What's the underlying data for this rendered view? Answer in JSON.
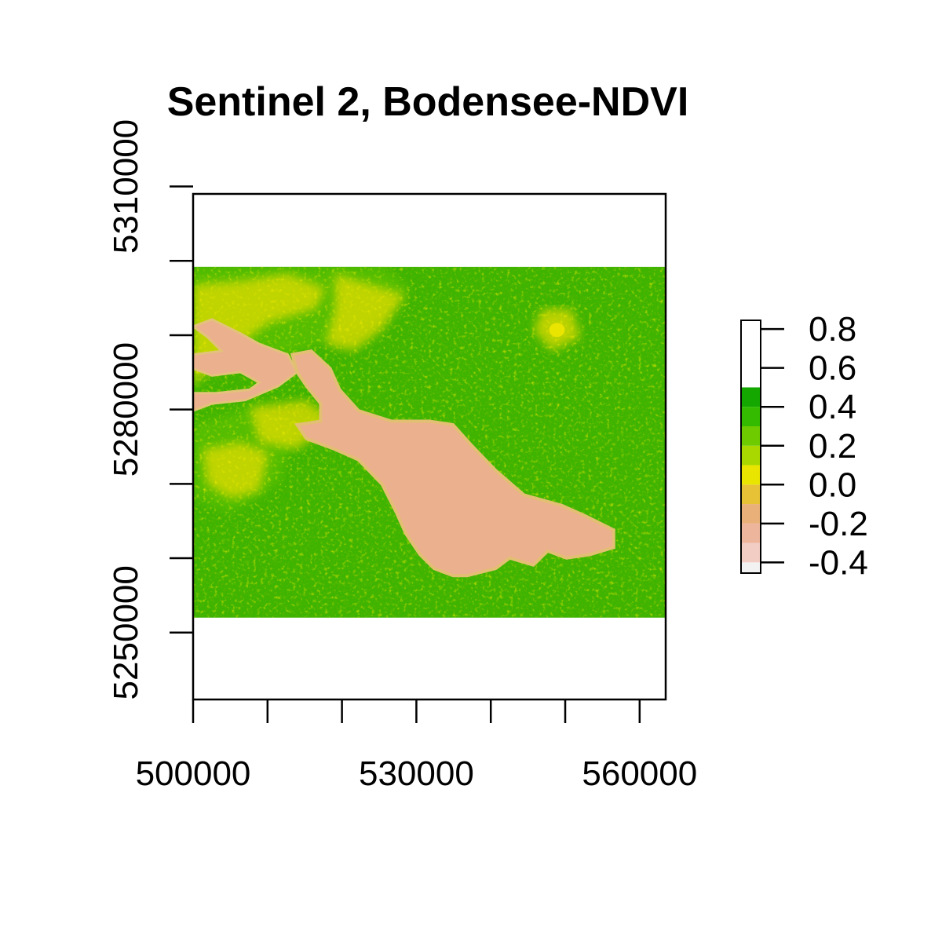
{
  "chart_data": {
    "type": "heatmap",
    "title": "Sentinel 2, Bodensee-NDVI",
    "xlabel": "",
    "ylabel": "",
    "xlim": [
      500000,
      563500
    ],
    "ylim": [
      5241000,
      5309000
    ],
    "raster_extent": {
      "x": [
        500000,
        563500
      ],
      "y": [
        5252000,
        5299200
      ]
    },
    "x_ticks": [
      500000,
      510000,
      520000,
      530000,
      540000,
      550000,
      560000
    ],
    "x_tick_labels": [
      "500000",
      "",
      "",
      "530000",
      "",
      "",
      "560000"
    ],
    "y_ticks": [
      5250000,
      5260000,
      5270000,
      5280000,
      5290000,
      5300000,
      5310000
    ],
    "y_tick_labels": [
      "5250000",
      "",
      "",
      "5280000",
      "",
      "",
      "5310000"
    ],
    "legend": {
      "position": "right",
      "breaks": [
        -0.5,
        -0.4,
        -0.3,
        -0.2,
        -0.1,
        0.0,
        0.1,
        0.2,
        0.3,
        0.4,
        0.5,
        0.6,
        0.7,
        0.8,
        0.9
      ],
      "colors": [
        "#F2F2F2",
        "#F2CDC4",
        "#EDB59C",
        "#E9B079",
        "#E7C236",
        "#E9E400",
        "#A9D800",
        "#6DCB00",
        "#34BB00",
        "#13A700"
      ],
      "tick_values": [
        -0.4,
        -0.2,
        0.0,
        0.2,
        0.4,
        0.6,
        0.8
      ],
      "tick_labels": [
        "-0.4",
        "-0.2",
        "0.0",
        "0.2",
        "0.4",
        "0.6",
        "0.8"
      ]
    },
    "map_colors": {
      "vegetation": "#3DB400",
      "vegetation_dark": "#279C00",
      "vegetation_mid": "#5EC200",
      "sparse": "#E3DC00",
      "lake": "#EBB08D"
    },
    "grid": false
  }
}
